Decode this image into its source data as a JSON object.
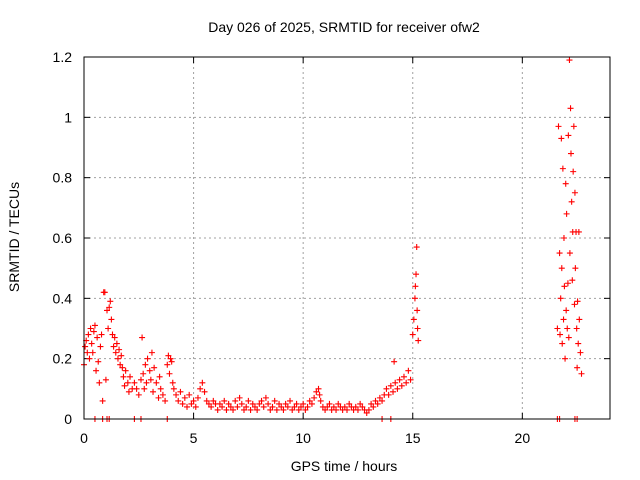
{
  "chart_data": {
    "type": "scatter",
    "title": "Day 026 of 2025, SRMTID for receiver ofw2",
    "xlabel": "GPS time / hours",
    "ylabel": "SRMTID / TECUs",
    "xlim": [
      0,
      24
    ],
    "ylim": [
      0,
      1.2
    ],
    "x_ticks": [
      0,
      5,
      10,
      15,
      20
    ],
    "x_tick_labels": [
      "0",
      "5",
      "10",
      "15",
      "20"
    ],
    "y_ticks": [
      0,
      0.2,
      0.4,
      0.6,
      0.8,
      1.0,
      1.2
    ],
    "y_tick_labels": [
      "0",
      "0.2",
      "0.4",
      "0.6",
      "0.8",
      "1",
      "1.2"
    ],
    "grid": true,
    "marker": "plus",
    "marker_color": "#ff0000",
    "series": [
      {
        "name": "SRMTID",
        "points": [
          [
            0.0,
            0.18
          ],
          [
            0.05,
            0.24
          ],
          [
            0.1,
            0.26
          ],
          [
            0.15,
            0.22
          ],
          [
            0.2,
            0.28
          ],
          [
            0.25,
            0.2
          ],
          [
            0.3,
            0.3
          ],
          [
            0.35,
            0.25
          ],
          [
            0.4,
            0.22
          ],
          [
            0.45,
            0.29
          ],
          [
            0.5,
            0.31
          ],
          [
            0.55,
            0.16
          ],
          [
            0.6,
            0.27
          ],
          [
            0.65,
            0.19
          ],
          [
            0.7,
            0.12
          ],
          [
            0.75,
            0.24
          ],
          [
            0.8,
            0.28
          ],
          [
            0.85,
            0.06
          ],
          [
            0.9,
            0.42
          ],
          [
            0.95,
            0.42
          ],
          [
            1.0,
            0.13
          ],
          [
            1.05,
            0.36
          ],
          [
            1.1,
            0.3
          ],
          [
            1.15,
            0.37
          ],
          [
            1.2,
            0.39
          ],
          [
            1.25,
            0.33
          ],
          [
            1.3,
            0.28
          ],
          [
            1.35,
            0.24
          ],
          [
            1.4,
            0.27
          ],
          [
            1.45,
            0.22
          ],
          [
            1.5,
            0.25
          ],
          [
            1.55,
            0.2
          ],
          [
            1.6,
            0.23
          ],
          [
            1.65,
            0.18
          ],
          [
            1.7,
            0.21
          ],
          [
            1.75,
            0.17
          ],
          [
            1.8,
            0.14
          ],
          [
            1.85,
            0.11
          ],
          [
            1.9,
            0.16
          ],
          [
            2.0,
            0.12
          ],
          [
            2.05,
            0.09
          ],
          [
            2.1,
            0.14
          ],
          [
            2.2,
            0.1
          ],
          [
            2.3,
            0.12
          ],
          [
            2.4,
            0.1
          ],
          [
            2.5,
            0.08
          ],
          [
            2.6,
            0.13
          ],
          [
            2.65,
            0.27
          ],
          [
            2.7,
            0.15
          ],
          [
            2.75,
            0.1
          ],
          [
            2.8,
            0.18
          ],
          [
            2.85,
            0.12
          ],
          [
            2.9,
            0.2
          ],
          [
            3.0,
            0.16
          ],
          [
            3.05,
            0.13
          ],
          [
            3.1,
            0.22
          ],
          [
            3.15,
            0.09
          ],
          [
            3.2,
            0.17
          ],
          [
            3.3,
            0.12
          ],
          [
            3.4,
            0.07
          ],
          [
            3.45,
            0.14
          ],
          [
            3.5,
            0.1
          ],
          [
            3.6,
            0.08
          ],
          [
            3.7,
            0.06
          ],
          [
            3.8,
            0.18
          ],
          [
            3.85,
            0.21
          ],
          [
            3.9,
            0.15
          ],
          [
            3.95,
            0.2
          ],
          [
            4.0,
            0.19
          ],
          [
            4.05,
            0.12
          ],
          [
            4.1,
            0.1
          ],
          [
            4.2,
            0.08
          ],
          [
            4.3,
            0.06
          ],
          [
            4.4,
            0.09
          ],
          [
            4.5,
            0.05
          ],
          [
            4.6,
            0.07
          ],
          [
            4.7,
            0.04
          ],
          [
            4.8,
            0.08
          ],
          [
            4.9,
            0.05
          ],
          [
            5.0,
            0.06
          ],
          [
            5.1,
            0.04
          ],
          [
            5.2,
            0.07
          ],
          [
            5.3,
            0.1
          ],
          [
            5.4,
            0.12
          ],
          [
            5.5,
            0.09
          ],
          [
            5.6,
            0.06
          ],
          [
            5.7,
            0.05
          ],
          [
            5.8,
            0.04
          ],
          [
            5.9,
            0.06
          ],
          [
            6.0,
            0.05
          ],
          [
            6.1,
            0.03
          ],
          [
            6.2,
            0.05
          ],
          [
            6.3,
            0.04
          ],
          [
            6.4,
            0.06
          ],
          [
            6.5,
            0.03
          ],
          [
            6.6,
            0.05
          ],
          [
            6.7,
            0.04
          ],
          [
            6.8,
            0.03
          ],
          [
            6.9,
            0.06
          ],
          [
            7.0,
            0.04
          ],
          [
            7.1,
            0.07
          ],
          [
            7.2,
            0.05
          ],
          [
            7.3,
            0.03
          ],
          [
            7.4,
            0.04
          ],
          [
            7.5,
            0.06
          ],
          [
            7.6,
            0.03
          ],
          [
            7.7,
            0.05
          ],
          [
            7.8,
            0.04
          ],
          [
            7.9,
            0.03
          ],
          [
            8.0,
            0.05
          ],
          [
            8.1,
            0.06
          ],
          [
            8.2,
            0.04
          ],
          [
            8.3,
            0.07
          ],
          [
            8.4,
            0.05
          ],
          [
            8.5,
            0.03
          ],
          [
            8.6,
            0.04
          ],
          [
            8.7,
            0.06
          ],
          [
            8.8,
            0.03
          ],
          [
            8.9,
            0.05
          ],
          [
            9.0,
            0.04
          ],
          [
            9.1,
            0.03
          ],
          [
            9.2,
            0.05
          ],
          [
            9.3,
            0.04
          ],
          [
            9.4,
            0.06
          ],
          [
            9.5,
            0.03
          ],
          [
            9.6,
            0.04
          ],
          [
            9.7,
            0.05
          ],
          [
            9.8,
            0.03
          ],
          [
            9.9,
            0.04
          ],
          [
            10.0,
            0.05
          ],
          [
            10.1,
            0.03
          ],
          [
            10.2,
            0.04
          ],
          [
            10.3,
            0.06
          ],
          [
            10.4,
            0.05
          ],
          [
            10.5,
            0.07
          ],
          [
            10.6,
            0.09
          ],
          [
            10.7,
            0.1
          ],
          [
            10.75,
            0.08
          ],
          [
            10.8,
            0.06
          ],
          [
            10.9,
            0.04
          ],
          [
            11.0,
            0.03
          ],
          [
            11.1,
            0.04
          ],
          [
            11.2,
            0.05
          ],
          [
            11.3,
            0.03
          ],
          [
            11.4,
            0.04
          ],
          [
            11.5,
            0.03
          ],
          [
            11.6,
            0.05
          ],
          [
            11.7,
            0.04
          ],
          [
            11.8,
            0.03
          ],
          [
            11.9,
            0.04
          ],
          [
            12.0,
            0.03
          ],
          [
            12.1,
            0.05
          ],
          [
            12.2,
            0.04
          ],
          [
            12.3,
            0.03
          ],
          [
            12.4,
            0.04
          ],
          [
            12.5,
            0.03
          ],
          [
            12.6,
            0.05
          ],
          [
            12.7,
            0.04
          ],
          [
            12.8,
            0.03
          ],
          [
            12.9,
            0.02
          ],
          [
            13.0,
            0.03
          ],
          [
            13.1,
            0.05
          ],
          [
            13.2,
            0.04
          ],
          [
            13.3,
            0.06
          ],
          [
            13.4,
            0.05
          ],
          [
            13.5,
            0.07
          ],
          [
            13.6,
            0.06
          ],
          [
            13.7,
            0.08
          ],
          [
            13.8,
            0.1
          ],
          [
            13.9,
            0.08
          ],
          [
            14.0,
            0.11
          ],
          [
            14.1,
            0.09
          ],
          [
            14.15,
            0.19
          ],
          [
            14.2,
            0.12
          ],
          [
            14.3,
            0.1
          ],
          [
            14.4,
            0.13
          ],
          [
            14.5,
            0.11
          ],
          [
            14.6,
            0.14
          ],
          [
            14.7,
            0.12
          ],
          [
            14.8,
            0.16
          ],
          [
            14.9,
            0.13
          ],
          [
            15.0,
            0.28
          ],
          [
            15.05,
            0.33
          ],
          [
            15.1,
            0.4
          ],
          [
            15.12,
            0.44
          ],
          [
            15.15,
            0.48
          ],
          [
            15.18,
            0.57
          ],
          [
            15.2,
            0.36
          ],
          [
            15.22,
            0.3
          ],
          [
            15.25,
            0.26
          ],
          [
            0.5,
            0.0
          ],
          [
            0.85,
            0.0
          ],
          [
            1.05,
            0.0
          ],
          [
            1.15,
            0.0
          ],
          [
            2.3,
            0.0
          ],
          [
            2.6,
            0.0
          ],
          [
            3.8,
            0.0
          ],
          [
            13.6,
            0.0
          ],
          [
            14.0,
            0.0
          ],
          [
            21.6,
            0.0
          ],
          [
            21.7,
            0.0
          ],
          [
            22.4,
            0.0
          ],
          [
            22.5,
            0.0
          ],
          [
            21.6,
            0.3
          ],
          [
            21.65,
            0.97
          ],
          [
            21.7,
            0.55
          ],
          [
            21.72,
            0.28
          ],
          [
            21.75,
            0.4
          ],
          [
            21.78,
            0.93
          ],
          [
            21.8,
            0.5
          ],
          [
            21.82,
            0.25
          ],
          [
            21.85,
            0.83
          ],
          [
            21.88,
            0.33
          ],
          [
            21.9,
            0.6
          ],
          [
            21.92,
            0.44
          ],
          [
            21.95,
            0.2
          ],
          [
            21.98,
            0.78
          ],
          [
            22.0,
            0.36
          ],
          [
            22.02,
            0.68
          ],
          [
            22.05,
            0.3
          ],
          [
            22.08,
            0.45
          ],
          [
            22.1,
            0.94
          ],
          [
            22.12,
            0.27
          ],
          [
            22.15,
            1.19
          ],
          [
            22.17,
            0.55
          ],
          [
            22.2,
            1.03
          ],
          [
            22.22,
            0.88
          ],
          [
            22.25,
            0.72
          ],
          [
            22.28,
            0.46
          ],
          [
            22.3,
            0.62
          ],
          [
            22.32,
            0.82
          ],
          [
            22.35,
            0.97
          ],
          [
            22.38,
            0.38
          ],
          [
            22.4,
            0.75
          ],
          [
            22.42,
            0.5
          ],
          [
            22.45,
            0.62
          ],
          [
            22.48,
            0.3
          ],
          [
            22.5,
            0.17
          ],
          [
            22.52,
            0.39
          ],
          [
            22.55,
            0.25
          ],
          [
            22.58,
            0.62
          ],
          [
            22.6,
            0.33
          ],
          [
            22.65,
            0.22
          ],
          [
            22.7,
            0.15
          ]
        ]
      }
    ]
  }
}
